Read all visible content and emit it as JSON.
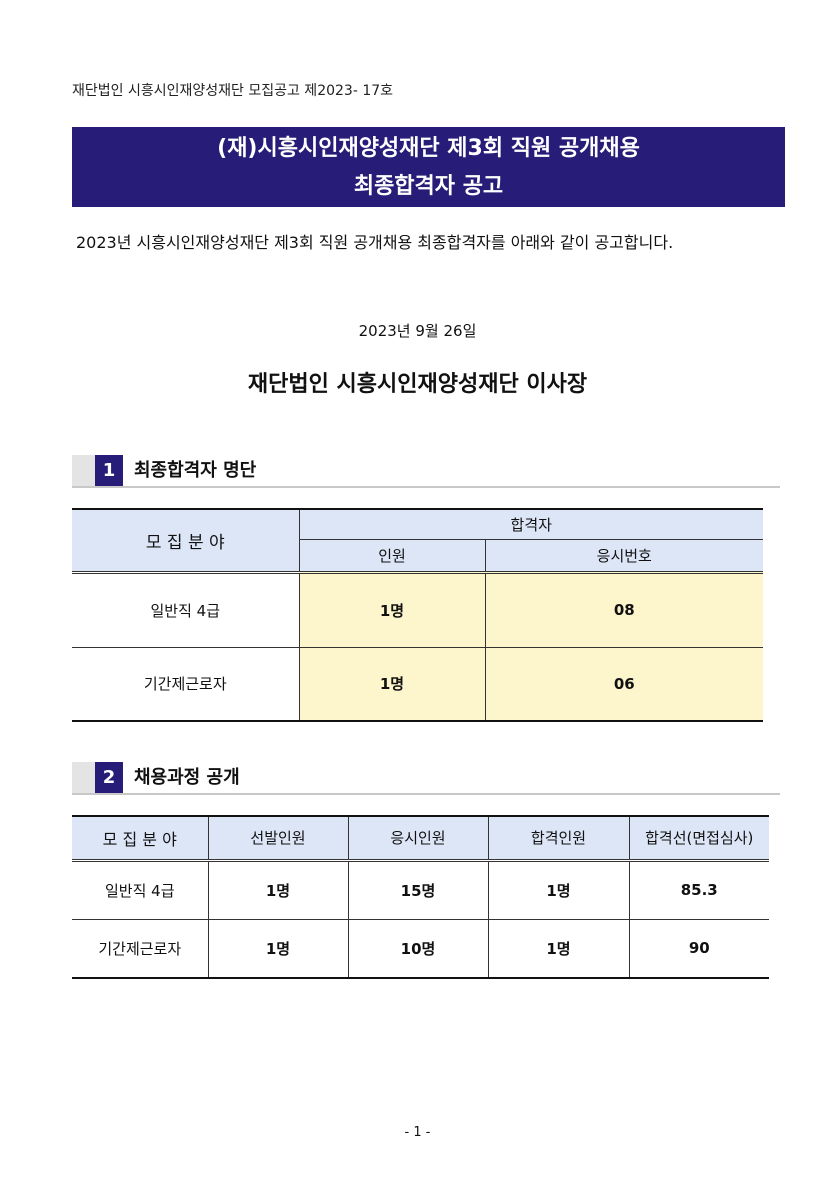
{
  "doc_number": "재단법인 시흥시인재양성재단 모집공고 제2023- 17호",
  "banner": {
    "line1": "(재)시흥시인재양성재단 제3회 직원 공개채용",
    "line2": "최종합격자 공고"
  },
  "intro": "2023년 시흥시인재양성재단 제3회 직원 공개채용 최종합격자를 아래와 같이 공고합니다.",
  "date": "2023년 9월 26일",
  "signer": "재단법인 시흥시인재양성재단 이사장",
  "section1": {
    "num": "1",
    "title": "최종합격자 명단",
    "headers": {
      "field": "모 집 분 야",
      "passers": "합격자",
      "count": "인원",
      "exam_no": "응시번호"
    },
    "rows": [
      {
        "field": "일반직 4급",
        "count": "1명",
        "exam_no": "08"
      },
      {
        "field": "기간제근로자",
        "count": "1명",
        "exam_no": "06"
      }
    ]
  },
  "section2": {
    "num": "2",
    "title": "채용과정 공개",
    "headers": [
      "모 집 분 야",
      "선발인원",
      "응시인원",
      "합격인원",
      "합격선(면접심사)"
    ],
    "rows": [
      [
        "일반직 4급",
        "1명",
        "15명",
        "1명",
        "85.3"
      ],
      [
        "기간제근로자",
        "1명",
        "10명",
        "1명",
        "90"
      ]
    ]
  },
  "page_number": "- 1 -"
}
